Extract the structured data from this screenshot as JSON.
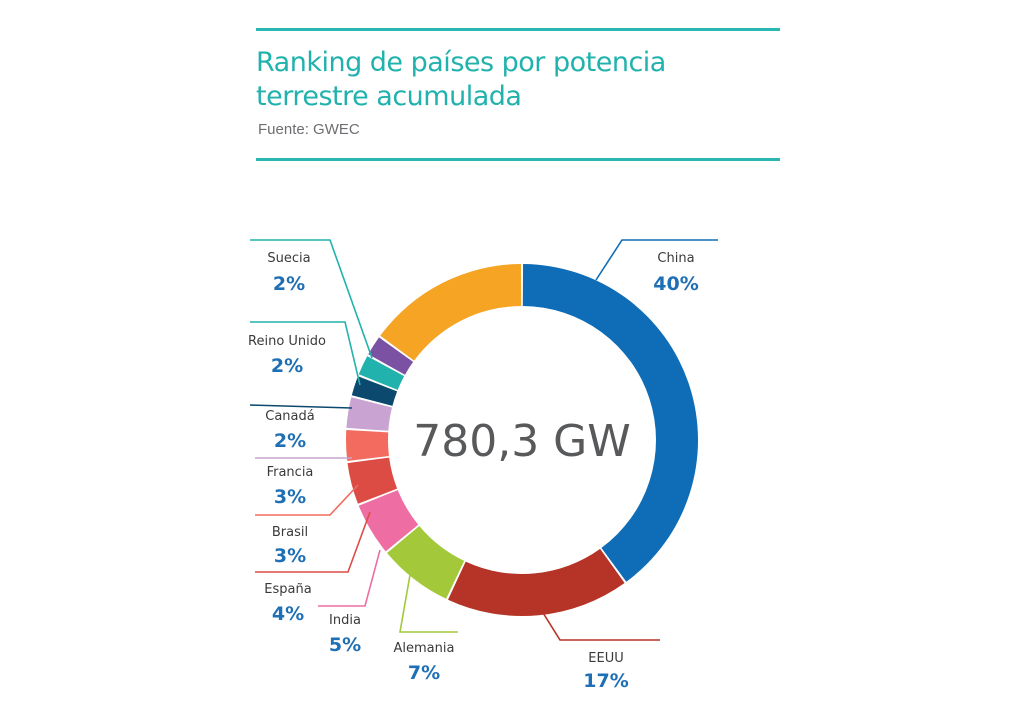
{
  "header": {
    "title_line1": "Ranking de países por potencia",
    "title_line2": "terrestre acumulada",
    "source": "Fuente: GWEC"
  },
  "chart_data": {
    "type": "pie",
    "style": "donut",
    "center_label": "780,3 GW",
    "total": "780,3 GW",
    "slices": [
      {
        "label": "China",
        "percent_label": "40%",
        "value": 40,
        "color": "#0e6db6"
      },
      {
        "label": "EEUU",
        "percent_label": "17%",
        "value": 17,
        "color": "#b53427"
      },
      {
        "label": "Alemania",
        "percent_label": "7%",
        "value": 7,
        "color": "#a3c93a"
      },
      {
        "label": "India",
        "percent_label": "5%",
        "value": 5,
        "color": "#ee6ea3"
      },
      {
        "label": "España",
        "percent_label": "4%",
        "value": 4,
        "color": "#dd4b45"
      },
      {
        "label": "Brasil",
        "percent_label": "3%",
        "value": 3,
        "color": "#f26b5e"
      },
      {
        "label": "Francia",
        "percent_label": "3%",
        "value": 3,
        "color": "#c9a3d1"
      },
      {
        "label": "Canadá",
        "percent_label": "2%",
        "value": 2,
        "color": "#0b4a6e"
      },
      {
        "label": "Reino Unido",
        "percent_label": "2%",
        "value": 2,
        "color": "#21b2ad"
      },
      {
        "label": "Suecia",
        "percent_label": "2%",
        "value": 2,
        "color": "#7b52a3"
      },
      {
        "label": "",
        "percent_label": "",
        "value": 15,
        "color": "#f6a424"
      }
    ]
  }
}
